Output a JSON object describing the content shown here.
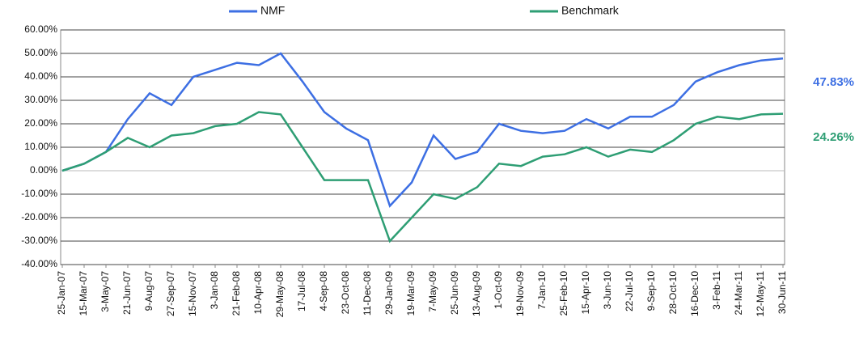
{
  "chart_data": {
    "type": "line",
    "categories": [
      "25-Jan-07",
      "15-Mar-07",
      "3-May-07",
      "21-Jun-07",
      "9-Aug-07",
      "27-Sep-07",
      "15-Nov-07",
      "3-Jan-08",
      "21-Feb-08",
      "10-Apr-08",
      "29-May-08",
      "17-Jul-08",
      "4-Sep-08",
      "23-Oct-08",
      "11-Dec-08",
      "29-Jan-09",
      "19-Mar-09",
      "7-May-09",
      "25-Jun-09",
      "13-Aug-09",
      "1-Oct-09",
      "19-Nov-09",
      "7-Jan-10",
      "25-Feb-10",
      "15-Apr-10",
      "3-Jun-10",
      "22-Jul-10",
      "9-Sep-10",
      "28-Oct-10",
      "16-Dec-10",
      "3-Feb-11",
      "24-Mar-11",
      "12-May-11",
      "30-Jun-11"
    ],
    "series": [
      {
        "name": "NMF",
        "color": "#3d6fe3",
        "end_label": "47.83%",
        "values": [
          0,
          3,
          8,
          22,
          33,
          28,
          40,
          43,
          46,
          45,
          50,
          38,
          25,
          18,
          13,
          -15,
          -5,
          15,
          5,
          8,
          20,
          17,
          16,
          17,
          22,
          18,
          23,
          23,
          28,
          38,
          42,
          45,
          47,
          47.83
        ]
      },
      {
        "name": "Benchmark",
        "color": "#2e9e74",
        "end_label": "24.26%",
        "values": [
          0,
          3,
          8,
          14,
          10,
          15,
          16,
          19,
          20,
          25,
          24,
          10,
          -4,
          -4,
          -4,
          -30,
          -20,
          -10,
          -12,
          -7,
          3,
          2,
          6,
          7,
          10,
          6,
          9,
          8,
          13,
          20,
          23,
          22,
          24,
          24.26
        ]
      }
    ],
    "ylim": [
      -40,
      60
    ],
    "yticks": [
      {
        "value": -40,
        "label": "-40.00%"
      },
      {
        "value": -30,
        "label": "-30.00%"
      },
      {
        "value": -20,
        "label": "-20.00%"
      },
      {
        "value": -10,
        "label": "-10.00%"
      },
      {
        "value": 0,
        "label": "0.00%"
      },
      {
        "value": 10,
        "label": "10.00%"
      },
      {
        "value": 20,
        "label": "20.00%"
      },
      {
        "value": 30,
        "label": "30.00%"
      },
      {
        "value": 40,
        "label": "40.00%"
      },
      {
        "value": 50,
        "label": "50.00%"
      },
      {
        "value": 60,
        "label": "60.00%"
      }
    ],
    "grid": true,
    "legend": "top"
  }
}
